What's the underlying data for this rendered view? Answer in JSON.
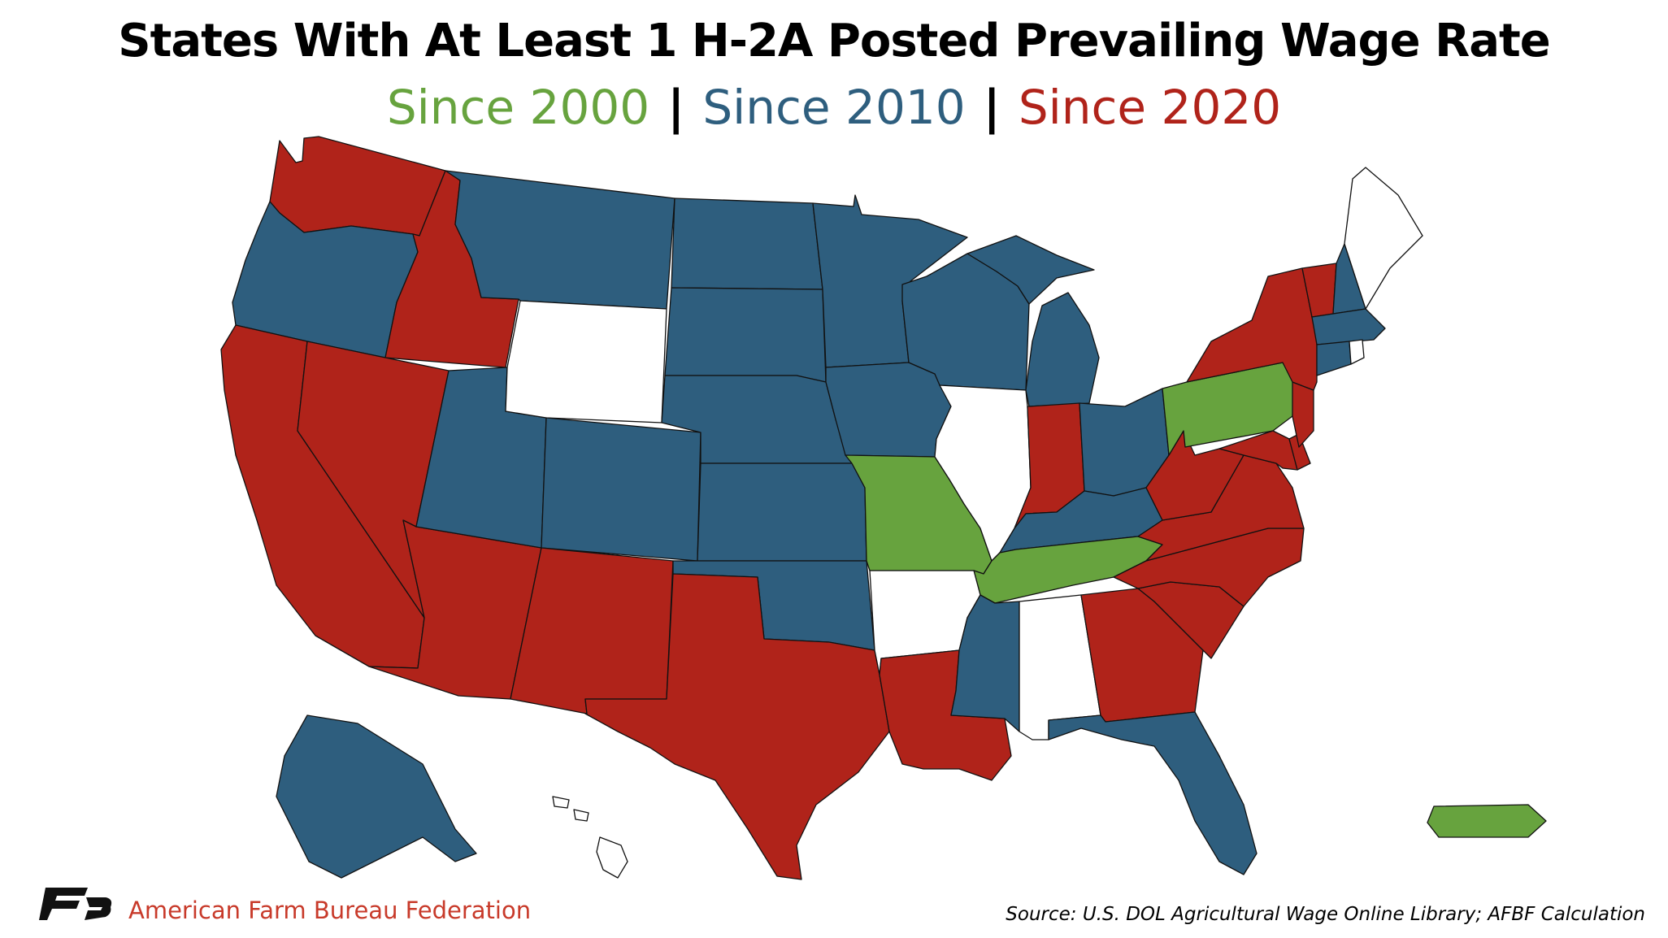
{
  "title": "States With At Least 1 H-2A Posted Prevailing Wage Rate",
  "legend": [
    {
      "label": "Since 2000",
      "color": "#67a33e"
    },
    {
      "label": "Since 2010",
      "color": "#2e5e7e"
    },
    {
      "label": "Since 2020",
      "color": "#b0231a"
    }
  ],
  "footer": {
    "organization": "American Farm Bureau Federation",
    "source": "Source: U.S. DOL Agricultural Wage Online Library; AFBF Calculation"
  },
  "states": {
    "since_2000": [
      "Missouri",
      "Tennessee",
      "Pennsylvania",
      "Puerto Rico"
    ],
    "since_2010": [
      "Oregon",
      "Montana",
      "North Dakota",
      "South Dakota",
      "Minnesota",
      "Wisconsin",
      "Michigan",
      "Utah",
      "Colorado",
      "Nebraska",
      "Kansas",
      "Iowa",
      "Oklahoma",
      "Ohio",
      "Kentucky",
      "Mississippi",
      "Florida",
      "New Hampshire",
      "Massachusetts",
      "Connecticut",
      "Alaska"
    ],
    "since_2020": [
      "Washington",
      "Idaho",
      "California",
      "Nevada",
      "Arizona",
      "New Mexico",
      "Texas",
      "Louisiana",
      "Indiana",
      "West Virginia",
      "Virginia",
      "North Carolina",
      "South Carolina",
      "Georgia",
      "New York",
      "Vermont",
      "New Jersey",
      "Maryland",
      "Delaware"
    ],
    "none": [
      "Wyoming",
      "Illinois",
      "Arkansas",
      "Alabama",
      "Maine",
      "Rhode Island",
      "Hawaii"
    ]
  }
}
